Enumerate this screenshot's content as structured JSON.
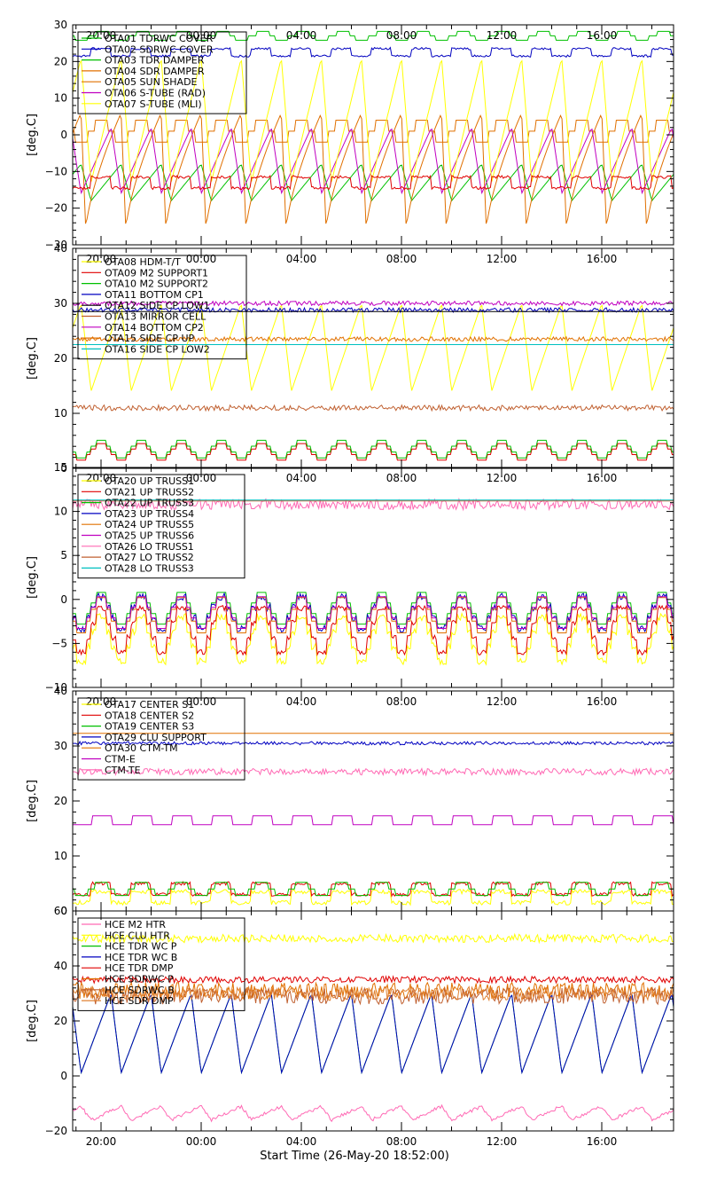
{
  "xlabel_text": "Start Time (26-May-20 18:52:00)",
  "chart_data": [
    {
      "type": "line",
      "ylabel": "[deg.C]",
      "ylim": [
        -30,
        30
      ],
      "yticks": [
        -30,
        -20,
        -10,
        0,
        10,
        20,
        30
      ],
      "ytick_labels": [
        "−30",
        "−20",
        "−10",
        "0",
        "10",
        "20",
        "30"
      ],
      "xlim": [
        18.867,
        42.867
      ],
      "xticks": [
        20,
        24,
        28,
        32,
        36,
        40
      ],
      "xtick_labels": [
        "20:00",
        "00:00",
        "04:00",
        "08:00",
        "12:00",
        "16:00"
      ],
      "legend_placement": "top-left",
      "series": [
        {
          "name": "OTA01 TDRWC COVER",
          "color": "#00c000",
          "sig": {
            "kind": "square",
            "base": 27,
            "amp": 1.2,
            "period": 1.6,
            "duty": 0.55,
            "levels": 3
          }
        },
        {
          "name": "OTA02 SDRWC COVER",
          "color": "#0000c0",
          "sig": {
            "kind": "square",
            "base": 22.5,
            "amp": 1,
            "period": 1.6,
            "duty": 0.5,
            "levels": 2,
            "noise": 0.3
          }
        },
        {
          "name": "OTA03 TDR DAMPER",
          "color": "#00c000",
          "sig": {
            "kind": "saw",
            "base": -13,
            "amp": 5,
            "period": 1.6,
            "shape": "down"
          }
        },
        {
          "name": "OTA04 SDR DAMPER",
          "color": "#e07000",
          "sig": {
            "kind": "sawsharp",
            "base": -10,
            "amp": 16,
            "period": 1.6
          }
        },
        {
          "name": "OTA05 SUN SHADE",
          "color": "#e07000",
          "sig": {
            "kind": "square",
            "base": 1,
            "amp": 3,
            "period": 1.6,
            "duty": 0.5,
            "levels": 3
          }
        },
        {
          "name": "OTA06 S-TUBE (RAD)",
          "color": "#c000c0",
          "sig": {
            "kind": "saw",
            "base": -7,
            "amp": 9,
            "period": 1.6,
            "shape": "up"
          }
        },
        {
          "name": "OTA07 S-TUBE (MLI)",
          "color": "#ffff00",
          "sig": {
            "kind": "saw",
            "base": 4,
            "amp": 17,
            "period": 1.6,
            "shape": "down"
          }
        },
        {
          "name": "",
          "color": "#e00000",
          "sig": {
            "kind": "square",
            "base": -13,
            "amp": 1.5,
            "period": 1.6,
            "duty": 0.5,
            "levels": 2,
            "noise": 0.4
          }
        }
      ]
    },
    {
      "type": "line",
      "ylabel": "[deg.C]",
      "ylim": [
        0,
        40
      ],
      "yticks": [
        0,
        10,
        20,
        30,
        40
      ],
      "ytick_labels": [
        "0",
        "10",
        "20",
        "30",
        "40"
      ],
      "xlim": [
        18.867,
        42.867
      ],
      "xticks": [
        20,
        24,
        28,
        32,
        36,
        40
      ],
      "xtick_labels": [
        "20:00",
        "00:00",
        "04:00",
        "08:00",
        "12:00",
        "16:00"
      ],
      "legend_placement": "top-left",
      "series": [
        {
          "name": "OTA08 HDM-T/T",
          "color": "#ffff00",
          "sig": {
            "kind": "saw",
            "base": 22,
            "amp": 8,
            "period": 1.6,
            "shape": "down"
          }
        },
        {
          "name": "OTA09 M2 SUPPORT1",
          "color": "#e00000",
          "sig": {
            "kind": "square",
            "base": 3,
            "amp": 1.5,
            "period": 1.6,
            "duty": 0.5,
            "levels": 4
          }
        },
        {
          "name": "OTA10 M2 SUPPORT2",
          "color": "#00c000",
          "sig": {
            "kind": "square",
            "base": 3.5,
            "amp": 1.6,
            "period": 1.6,
            "duty": 0.5,
            "levels": 4
          }
        },
        {
          "name": "OTA11 BOTTOM CP1",
          "color": "#0000c0",
          "sig": {
            "kind": "flat",
            "base": 28.8,
            "noise": 0.4
          }
        },
        {
          "name": "OTA12 SIDE CP LOW1",
          "color": "#000000",
          "sig": {
            "kind": "flat",
            "base": 28.5,
            "noise": 0
          }
        },
        {
          "name": "OTA13 MIRROR CELL",
          "color": "#c06030",
          "sig": {
            "kind": "flat",
            "base": 11,
            "noise": 0.5
          }
        },
        {
          "name": "OTA14 BOTTOM CP2",
          "color": "#c000c0",
          "sig": {
            "kind": "flat",
            "base": 30,
            "noise": 0.4
          }
        },
        {
          "name": "OTA15 SIDE CP UP",
          "color": "#e07000",
          "sig": {
            "kind": "flat",
            "base": 23.5,
            "noise": 0.4
          }
        },
        {
          "name": "OTA16 SIDE CP LOW2",
          "color": "#00c0c0",
          "sig": {
            "kind": "flat",
            "base": 22.5,
            "noise": 0
          }
        }
      ]
    },
    {
      "type": "line",
      "ylabel": "[deg.C]",
      "ylim": [
        -10,
        15
      ],
      "yticks": [
        -10,
        -5,
        0,
        5,
        10,
        15
      ],
      "ytick_labels": [
        "−10",
        "−5",
        "0",
        "5",
        "10",
        "15"
      ],
      "xlim": [
        18.867,
        42.867
      ],
      "xticks": [
        20,
        24,
        28,
        32,
        36,
        40
      ],
      "xtick_labels": [
        "20:00",
        "00:00",
        "04:00",
        "08:00",
        "12:00",
        "16:00"
      ],
      "legend_placement": "top-left",
      "series": [
        {
          "name": "OTA20 UP TRUSS1",
          "color": "#ffff00",
          "sig": {
            "kind": "square",
            "base": -4.5,
            "amp": 2.5,
            "period": 1.6,
            "duty": 0.5,
            "levels": 4,
            "noise": 0.4
          }
        },
        {
          "name": "OTA21 UP TRUSS2",
          "color": "#e00000",
          "sig": {
            "kind": "square",
            "base": -3.5,
            "amp": 2.5,
            "period": 1.6,
            "duty": 0.5,
            "levels": 4,
            "noise": 0.3
          }
        },
        {
          "name": "OTA22 UP TRUSS3",
          "color": "#00c000",
          "sig": {
            "kind": "square",
            "base": -1,
            "amp": 1.8,
            "period": 1.6,
            "duty": 0.5,
            "levels": 4
          }
        },
        {
          "name": "OTA23 UP TRUSS4",
          "color": "#0000c0",
          "sig": {
            "kind": "square",
            "base": -1.5,
            "amp": 1.8,
            "period": 1.6,
            "duty": 0.5,
            "levels": 4,
            "noise": 0.4
          }
        },
        {
          "name": "OTA24 UP TRUSS5",
          "color": "#e07000",
          "sig": {
            "kind": "square",
            "base": -1.8,
            "amp": 2,
            "period": 1.6,
            "duty": 0.5,
            "levels": 4
          }
        },
        {
          "name": "OTA25 UP TRUSS6",
          "color": "#c000c0",
          "sig": {
            "kind": "square",
            "base": -1.5,
            "amp": 1.8,
            "period": 1.6,
            "duty": 0.5,
            "levels": 4
          }
        },
        {
          "name": "OTA26 LO TRUSS1",
          "color": "#ff69b4",
          "sig": {
            "kind": "flat",
            "base": 10.8,
            "noise": 0.6
          }
        },
        {
          "name": "OTA27 LO TRUSS2",
          "color": "#c06030",
          "sig": {
            "kind": "flat",
            "base": 11.2,
            "noise": 0
          }
        },
        {
          "name": "OTA28 LO TRUSS3",
          "color": "#00c0c0",
          "sig": {
            "kind": "flat",
            "base": 11.3,
            "noise": 0
          }
        }
      ]
    },
    {
      "type": "line",
      "ylabel": "[deg.C]",
      "ylim": [
        0,
        40
      ],
      "yticks": [
        0,
        10,
        20,
        30,
        40
      ],
      "ytick_labels": [
        "0",
        "10",
        "20",
        "30",
        "40"
      ],
      "xlim": [
        18.867,
        42.867
      ],
      "xticks": [
        20,
        24,
        28,
        32,
        36,
        40
      ],
      "xtick_labels": [
        "20:00",
        "00:00",
        "04:00",
        "08:00",
        "12:00",
        "16:00"
      ],
      "legend_placement": "top-left",
      "series": [
        {
          "name": "OTA17 CENTER S1",
          "color": "#ffff00",
          "sig": {
            "kind": "square",
            "base": 2.5,
            "amp": 1,
            "period": 1.6,
            "duty": 0.5,
            "levels": 2,
            "noise": 0.4
          }
        },
        {
          "name": "OTA18 CENTER S2",
          "color": "#e00000",
          "sig": {
            "kind": "square",
            "base": 4,
            "amp": 1,
            "period": 1.6,
            "duty": 0.5,
            "levels": 2,
            "noise": 0.3
          }
        },
        {
          "name": "OTA19 CENTER S3",
          "color": "#00c000",
          "sig": {
            "kind": "square",
            "base": 4,
            "amp": 1.2,
            "period": 1.6,
            "duty": 0.5,
            "levels": 3
          }
        },
        {
          "name": "OTA29 CLU SUPPORT",
          "color": "#0000c0",
          "sig": {
            "kind": "flat",
            "base": 30.5,
            "noise": 0.3
          }
        },
        {
          "name": "OTA30 CTM-TM",
          "color": "#e07000",
          "sig": {
            "kind": "flat",
            "base": 32.3,
            "noise": 0
          }
        },
        {
          "name": "CTM-E",
          "color": "#c000c0",
          "sig": {
            "kind": "square",
            "base": 16.5,
            "amp": 0.8,
            "period": 1.6,
            "duty": 0.55,
            "levels": 2
          }
        },
        {
          "name": "CTM-TE",
          "color": "#ff69b4",
          "sig": {
            "kind": "flat",
            "base": 25.3,
            "noise": 0.6
          }
        }
      ]
    },
    {
      "type": "line",
      "ylabel": "[deg.C]",
      "ylim": [
        -20,
        60
      ],
      "yticks": [
        -20,
        0,
        20,
        40,
        60
      ],
      "ytick_labels": [
        "−20",
        "0",
        "20",
        "40",
        "60"
      ],
      "xlim": [
        18.867,
        42.867
      ],
      "xticks": [
        20,
        24,
        28,
        32,
        36,
        40
      ],
      "xtick_labels": [
        "20:00",
        "00:00",
        "04:00",
        "08:00",
        "12:00",
        "16:00"
      ],
      "legend_placement": "top-left",
      "series": [
        {
          "name": "HCE M2 HTR",
          "color": "#ff69b4",
          "sig": {
            "kind": "saw",
            "base": -13.5,
            "amp": 2.5,
            "period": 1.6,
            "shape": "down",
            "noise": 0.6
          }
        },
        {
          "name": "HCE CLU HTR",
          "color": "#ffff00",
          "sig": {
            "kind": "flat",
            "base": 50,
            "noise": 1.5
          }
        },
        {
          "name": "HCE TDR WC P",
          "color": "#00c000",
          "sig": {
            "kind": "saw",
            "base": 15.5,
            "amp": 14.5,
            "period": 1.6,
            "shape": "up"
          }
        },
        {
          "name": "HCE TDR WC B",
          "color": "#0000c0",
          "sig": {
            "kind": "saw",
            "base": 15.5,
            "amp": 14.5,
            "period": 1.6,
            "shape": "up"
          }
        },
        {
          "name": "HCE TDR DMP",
          "color": "#e00000",
          "sig": {
            "kind": "flat",
            "base": 35,
            "noise": 1.2
          }
        },
        {
          "name": "HCE SDRWC P",
          "color": "#e07000",
          "sig": {
            "kind": "flat",
            "base": 31,
            "noise": 3
          }
        },
        {
          "name": "HCE SDRWC B",
          "color": "#c06030",
          "sig": {
            "kind": "flat",
            "base": 29,
            "noise": 3
          }
        },
        {
          "name": "HCE SDR DMP",
          "color": "#e08030",
          "sig": {
            "kind": "flat",
            "base": 30,
            "noise": 2.5
          }
        }
      ]
    }
  ]
}
